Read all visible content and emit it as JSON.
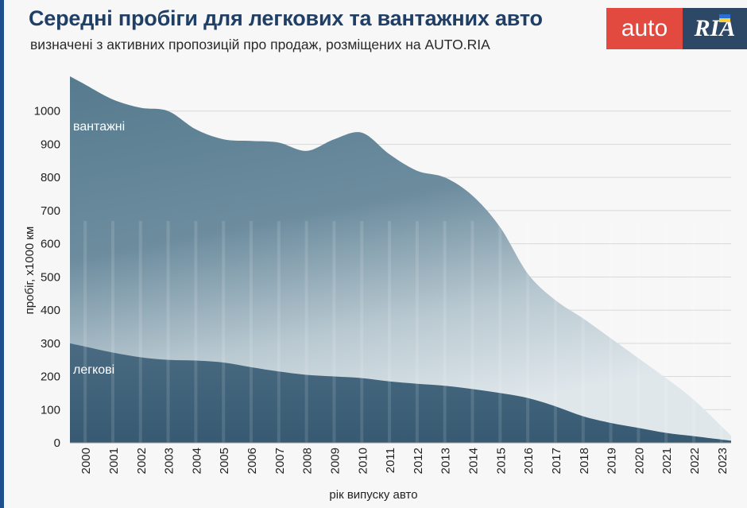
{
  "header": {
    "title": "Середні пробіги для легкових та вантажних авто",
    "subtitle": "визначені з активних пропозицій про продаж, розміщених на AUTO.RIA"
  },
  "logo": {
    "left_text": "auto",
    "right_text": "RIA"
  },
  "colors": {
    "trucks": "#577a8f",
    "cars": "#3f6077",
    "grid": "#d9d9d9",
    "title": "#1f3f66",
    "logo_red": "#e2493f",
    "logo_blue": "#2d4766"
  },
  "chart_data": {
    "type": "area",
    "title": "Середні пробіги для легкових та вантажних авто",
    "subtitle": "визначені з активних пропозицій про продаж, розміщених на AUTO.RIA",
    "xlabel": "рік випуску авто",
    "ylabel": "пробіг, x1000 км",
    "ylim": [
      0,
      1100
    ],
    "yticks": [
      0,
      100,
      200,
      300,
      400,
      500,
      600,
      700,
      800,
      900,
      1000
    ],
    "xticks": [
      "2000",
      "2001",
      "2002",
      "2003",
      "2004",
      "2005",
      "2006",
      "2007",
      "2008",
      "2009",
      "2010",
      "2011",
      "2012",
      "2013",
      "2014",
      "2015",
      "2016",
      "2017",
      "2018",
      "2019",
      "2020",
      "2021",
      "2022",
      "2023"
    ],
    "grid": true,
    "x": [
      2000,
      2001,
      2002,
      2003,
      2004,
      2005,
      2006,
      2007,
      2008,
      2009,
      2010,
      2011,
      2012,
      2013,
      2014,
      2015,
      2016,
      2017,
      2018,
      2019,
      2020,
      2021,
      2022,
      2023
    ],
    "series": [
      {
        "name": "вантажні",
        "values": [
          1080,
          1035,
          1010,
          1000,
          945,
          915,
          910,
          905,
          880,
          915,
          935,
          870,
          820,
          800,
          745,
          650,
          510,
          430,
          375,
          315,
          255,
          195,
          130,
          50
        ]
      },
      {
        "name": "легкові",
        "values": [
          290,
          272,
          258,
          250,
          248,
          242,
          228,
          215,
          205,
          200,
          195,
          185,
          178,
          172,
          162,
          150,
          135,
          110,
          80,
          60,
          45,
          30,
          20,
          10
        ]
      }
    ]
  }
}
